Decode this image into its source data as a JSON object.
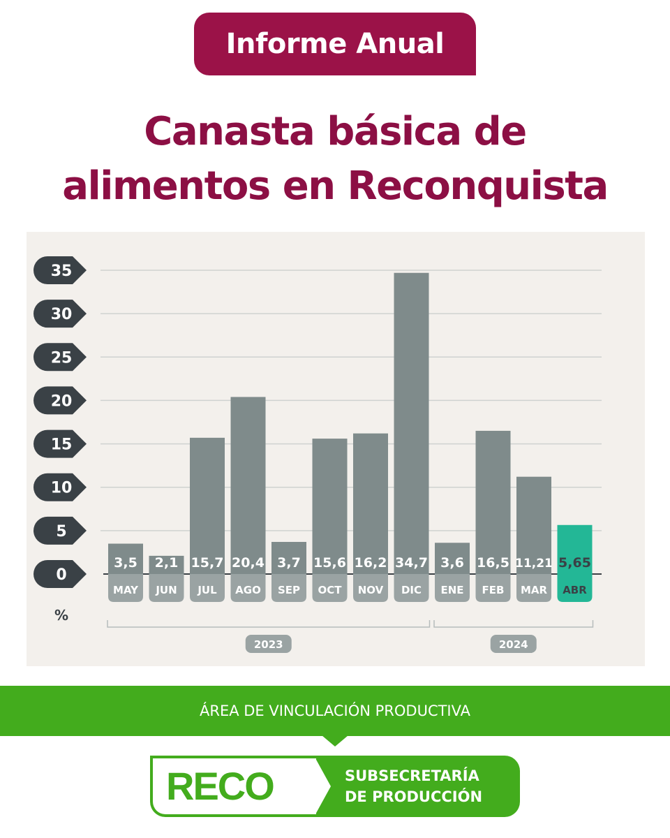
{
  "header": {
    "badge": "Informe Anual"
  },
  "title": {
    "line1": "Canasta básica de",
    "line2": "alimentos en Reconquista"
  },
  "chart_data": {
    "type": "bar",
    "categories": [
      "MAY",
      "JUN",
      "JUL",
      "AGO",
      "SEP",
      "OCT",
      "NOV",
      "DIC",
      "ENE",
      "FEB",
      "MAR",
      "ABR"
    ],
    "values": [
      3.5,
      2.1,
      15.7,
      20.4,
      3.7,
      15.6,
      16.2,
      34.7,
      3.6,
      16.5,
      11.21,
      5.65
    ],
    "value_labels": [
      "3,5",
      "2,1",
      "15,7",
      "20,4",
      "3,7",
      "15,6",
      "16,2",
      "34,7",
      "3,6",
      "16,5",
      "11,21",
      "5,65"
    ],
    "highlight_index": 11,
    "yticks": [
      0,
      5,
      10,
      15,
      20,
      25,
      30,
      35
    ],
    "ylim": [
      0,
      35
    ],
    "ylabel": "%",
    "grid": true,
    "groups": [
      {
        "label": "2023",
        "from": 0,
        "to": 7
      },
      {
        "label": "2024",
        "from": 8,
        "to": 11
      }
    ],
    "colors": {
      "bar": "#7f8b8b",
      "highlight": "#23b796",
      "tick_badge": "#3a4146",
      "label_pill": "#9aa3a3",
      "highlight_text": "#3a4146",
      "grid": "#cfd2d0"
    }
  },
  "footer": {
    "band_text": "ÁREA DE VINCULACIÓN PRODUCTIVA",
    "logo_word": "RECO",
    "logo_line1": "SUBSECRETARÍA",
    "logo_line2": "DE PRODUCCIÓN"
  }
}
